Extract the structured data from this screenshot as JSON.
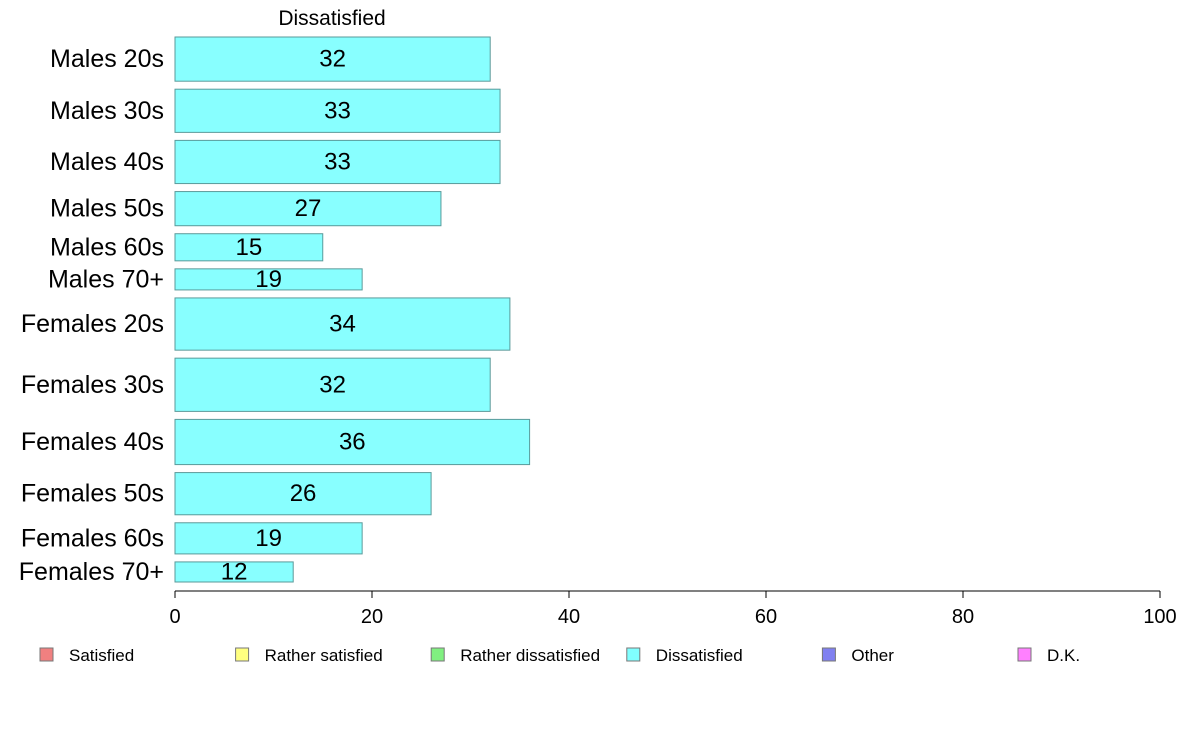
{
  "chart_data": {
    "type": "bar",
    "orientation": "horizontal",
    "title": "Dissatisfied",
    "categories": [
      "Males 20s",
      "Males 30s",
      "Males 40s",
      "Males 50s",
      "Males 60s",
      "Males 70+",
      "Females 20s",
      "Females 30s",
      "Females 40s",
      "Females 50s",
      "Females 60s",
      "Females 70+"
    ],
    "bar_relative_thickness": [
      44,
      43,
      43,
      34,
      27,
      21,
      52,
      53,
      45,
      42,
      31,
      20
    ],
    "series": [
      {
        "name": "Dissatisfied",
        "values": [
          32,
          33,
          33,
          27,
          15,
          19,
          34,
          32,
          36,
          26,
          19,
          12
        ],
        "color": "#88ffff"
      }
    ],
    "xlim": [
      0,
      100
    ],
    "xticks": [
      0,
      20,
      40,
      60,
      80,
      100
    ],
    "grid": false,
    "legend_position": "bottom",
    "legend": [
      {
        "label": "Satisfied",
        "color": "#f08080"
      },
      {
        "label": "Rather satisfied",
        "color": "#ffff80"
      },
      {
        "label": "Rather dissatisfied",
        "color": "#80f080"
      },
      {
        "label": "Dissatisfied",
        "color": "#80ffff"
      },
      {
        "label": "Other",
        "color": "#8080f0"
      },
      {
        "label": "D.K.",
        "color": "#ff80ff"
      }
    ]
  }
}
